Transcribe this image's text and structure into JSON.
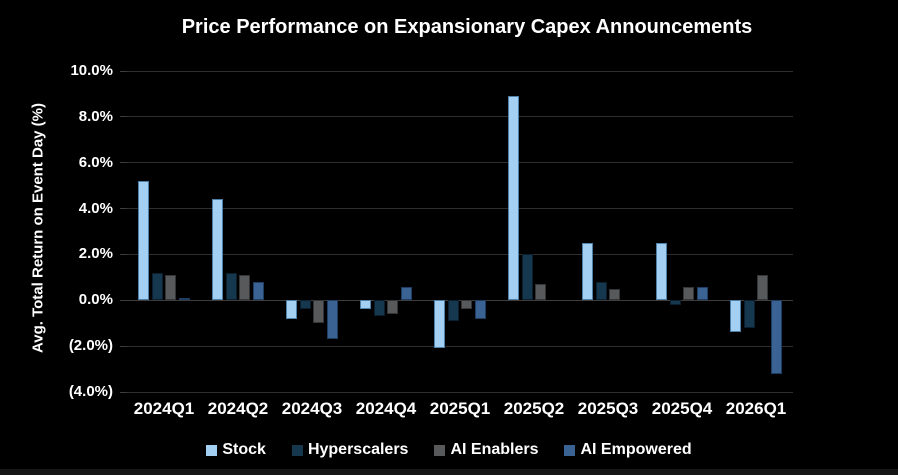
{
  "title": "Price Performance on Expansionary Capex Announcements",
  "colors": {
    "background": "#000000",
    "text": "#ffffff",
    "gridline": "#2e2e2e",
    "zero_line": "#3d3d3d"
  },
  "y_axis": {
    "title": "Avg. Total Return on Event Day (%)",
    "tick_labels": [
      "10.0%",
      "8.0%",
      "6.0%",
      "4.0%",
      "2.0%",
      "0.0%",
      "(2.0%)",
      "(4.0%)"
    ]
  },
  "chart_data": {
    "type": "bar",
    "title": "Price Performance on Expansionary Capex Announcements",
    "xlabel": "",
    "ylabel": "Avg. Total Return on Event Day (%)",
    "ylim": [
      -4,
      10
    ],
    "ytick_step": 2,
    "ytick_format": "percent_one_decimal_parentheses_for_negative",
    "grid": "horizontal",
    "legend_position": "bottom",
    "categories": [
      "2024Q1",
      "2024Q2",
      "2024Q3",
      "2024Q4",
      "2025Q1",
      "2025Q2",
      "2025Q3",
      "2025Q4",
      "2026Q1"
    ],
    "series": [
      {
        "name": "Stock",
        "color": "#A3D0F2",
        "border": "#4E7FA6",
        "values": [
          5.2,
          4.4,
          -0.8,
          -0.4,
          -2.1,
          8.9,
          2.5,
          2.5,
          -1.4
        ]
      },
      {
        "name": "Hyperscalers",
        "color": "#16384F",
        "border": "#0A1E2E",
        "values": [
          1.2,
          1.2,
          -0.4,
          -0.7,
          -0.9,
          2.0,
          0.8,
          -0.2,
          -1.2
        ]
      },
      {
        "name": "AI Enablers",
        "color": "#58595B",
        "border": "#343536",
        "values": [
          1.1,
          1.1,
          -1.0,
          -0.6,
          -0.4,
          0.7,
          0.5,
          0.6,
          1.1
        ]
      },
      {
        "name": "AI Empowered",
        "color": "#3A6393",
        "border": "#1F3D61",
        "values": [
          0.1,
          0.8,
          -1.7,
          0.6,
          -0.8,
          0.0,
          0.0,
          0.6,
          -3.2
        ]
      }
    ]
  }
}
